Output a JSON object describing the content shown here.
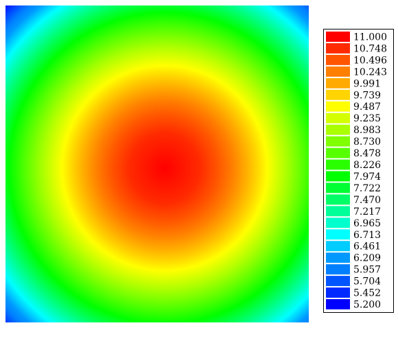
{
  "chart_data": {
    "type": "contour",
    "levels": [
      {
        "value": 11,
        "label": "11.000"
      },
      {
        "value": 10.748,
        "label": "10.748"
      },
      {
        "value": 10.496,
        "label": "10.496"
      },
      {
        "value": 10.243,
        "label": "10.243"
      },
      {
        "value": 9.991,
        "label": "9.991"
      },
      {
        "value": 9.739,
        "label": "9.739"
      },
      {
        "value": 9.487,
        "label": "9.487"
      },
      {
        "value": 9.235,
        "label": "9.235"
      },
      {
        "value": 8.983,
        "label": "8.983"
      },
      {
        "value": 8.73,
        "label": "8.730"
      },
      {
        "value": 8.478,
        "label": "8.478"
      },
      {
        "value": 8.226,
        "label": "8.226"
      },
      {
        "value": 7.974,
        "label": "7.974"
      },
      {
        "value": 7.722,
        "label": "7.722"
      },
      {
        "value": 7.47,
        "label": "7.470"
      },
      {
        "value": 7.217,
        "label": "7.217"
      },
      {
        "value": 6.965,
        "label": "6.965"
      },
      {
        "value": 6.713,
        "label": "6.713"
      },
      {
        "value": 6.461,
        "label": "6.461"
      },
      {
        "value": 6.209,
        "label": "6.209"
      },
      {
        "value": 5.957,
        "label": "5.957"
      },
      {
        "value": 5.704,
        "label": "5.704"
      },
      {
        "value": 5.452,
        "label": "5.452"
      },
      {
        "value": 5.2,
        "label": "5.200"
      }
    ],
    "colors": [
      "#ff0000",
      "#ff2a00",
      "#ff5500",
      "#ff7f00",
      "#ffaa00",
      "#ffd400",
      "#ffff00",
      "#d4ff00",
      "#aaff00",
      "#7fff00",
      "#55ff00",
      "#2aff00",
      "#00ff00",
      "#00ff33",
      "#00ff66",
      "#00ff99",
      "#00ffcc",
      "#00ffff",
      "#00ccff",
      "#0099ff",
      "#0080ff",
      "#0055ff",
      "#002aff",
      "#0000ff"
    ]
  }
}
